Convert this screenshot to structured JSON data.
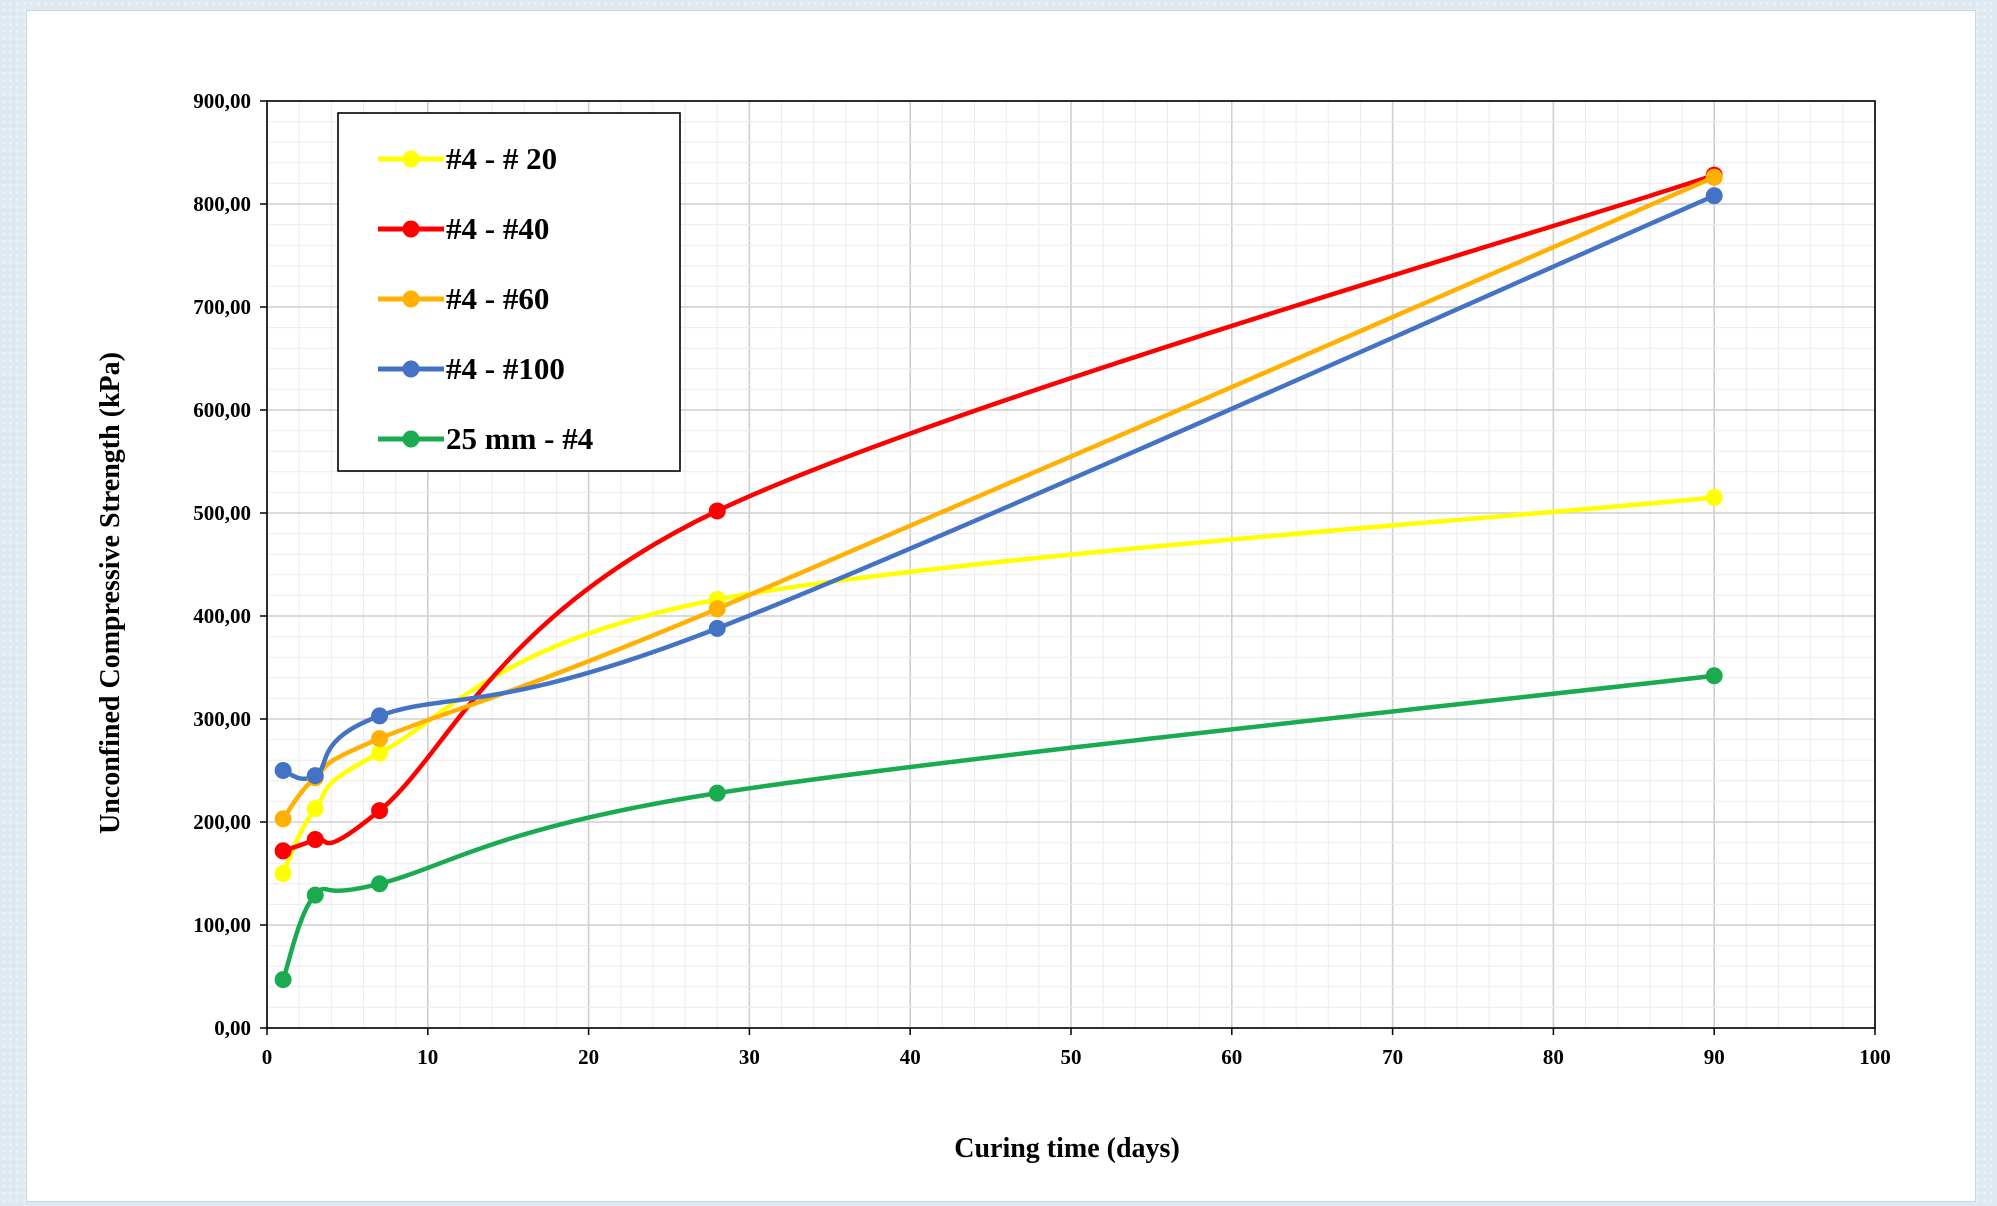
{
  "chart_data": {
    "type": "line",
    "title": "",
    "xlabel": "Curing time (days)",
    "ylabel": "Unconfined Compressive Strength (kPa)",
    "xlim": [
      0,
      100
    ],
    "ylim": [
      0,
      900
    ],
    "x_ticks": [
      "0",
      "10",
      "20",
      "30",
      "40",
      "50",
      "60",
      "70",
      "80",
      "90",
      "100"
    ],
    "y_ticks": [
      "0,00",
      "100,00",
      "200,00",
      "300,00",
      "400,00",
      "500,00",
      "600,00",
      "700,00",
      "800,00",
      "900,00"
    ],
    "grid": true,
    "legend_position": "top-left",
    "x": [
      1,
      3,
      7,
      28,
      90
    ],
    "series": [
      {
        "name": "#4 - # 20",
        "color": "#ffff00",
        "values": [
          150,
          213,
          267,
          416,
          515
        ]
      },
      {
        "name": "#4 - #40",
        "color": "#ff0000",
        "values": [
          172,
          183,
          211,
          502,
          828
        ]
      },
      {
        "name": "#4 - #60",
        "color": "#ffb000",
        "values": [
          203,
          243,
          281,
          407,
          826
        ]
      },
      {
        "name": "#4 - #100",
        "color": "#4472c4",
        "values": [
          250,
          245,
          303,
          388,
          808
        ]
      },
      {
        "name": "25 mm - #4",
        "color": "#1aaa50",
        "values": [
          47,
          129,
          140,
          228,
          342
        ]
      }
    ]
  }
}
